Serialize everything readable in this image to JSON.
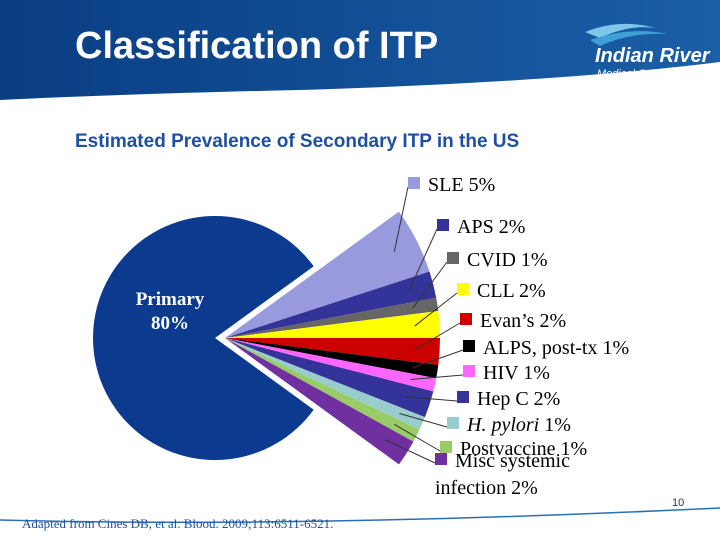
{
  "header": {
    "title": "Classification of ITP",
    "logo": {
      "name": "Indian River",
      "subtitle": "Medical Center"
    }
  },
  "chart_data": {
    "type": "pie",
    "title": "Estimated Prevalence of Secondary ITP in the US",
    "categories": [
      "Primary",
      "SLE",
      "APS",
      "CVID",
      "CLL",
      "Evan’s",
      "ALPS, post-tx",
      "HIV",
      "Hep C",
      "H. pylori",
      "Postvaccine",
      "Misc systemic infection"
    ],
    "values": [
      80,
      5,
      2,
      1,
      2,
      2,
      1,
      1,
      2,
      1,
      1,
      2
    ],
    "value_labels": [
      "80%",
      "5%",
      "2%",
      "1%",
      "2%",
      "2%",
      "1%",
      "1%",
      "2%",
      "1%",
      "1%",
      "2%"
    ],
    "colors": [
      "#0b3a8f",
      "#9999dd",
      "#333399",
      "#666666",
      "#ffff00",
      "#cc0000",
      "#000000",
      "#ff66ff",
      "#333399",
      "#99cccc",
      "#99cc66",
      "#7030a0"
    ]
  },
  "footer": {
    "source": "Adapted from Cines DB, et al. Blood. 2009;113:6511-6521.",
    "page_number": "10"
  }
}
